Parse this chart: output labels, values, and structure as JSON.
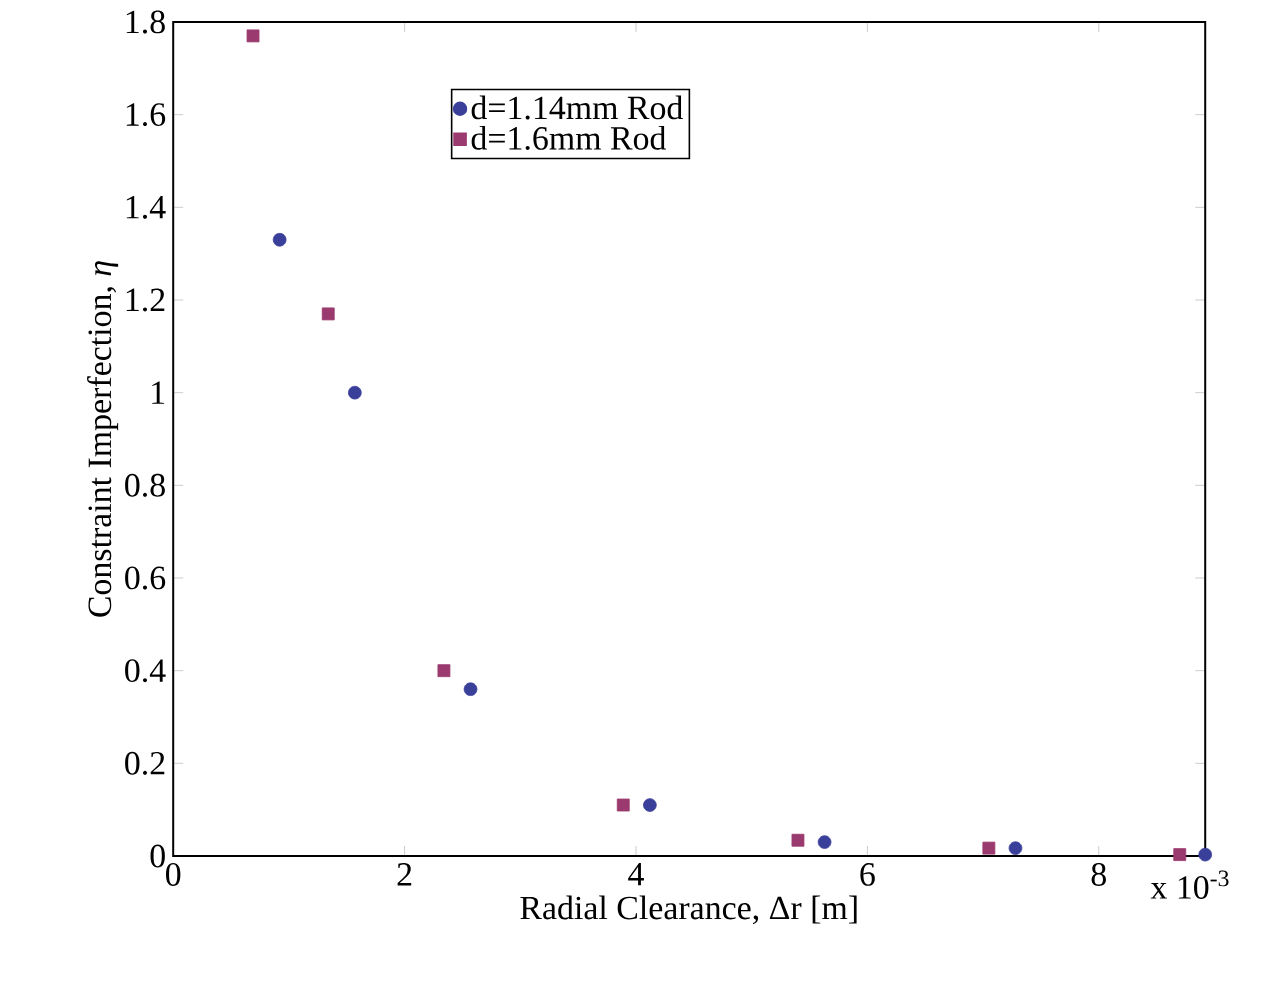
{
  "chart_data": {
    "type": "scatter",
    "xlabel": "Radial Clearance, Δr [m]",
    "ylabel": "Constraint Imperfection, *η*",
    "xlim": [
      0,
      8.92
    ],
    "ylim": [
      0,
      1.8
    ],
    "xticks": [
      0,
      2,
      4,
      6,
      8
    ],
    "yticks": [
      0,
      0.2,
      0.4,
      0.6,
      0.8,
      1,
      1.2,
      1.4,
      1.6,
      1.8
    ],
    "series": [
      {
        "name": "d=1.14mm Rod",
        "color": "#3a3f9a",
        "marker": "circle",
        "x": [
          0.92,
          1.57,
          2.57,
          4.12,
          5.63,
          7.28,
          8.92
        ],
        "values": [
          1.33,
          1.0,
          0.36,
          0.11,
          0.03,
          0.017,
          0.003
        ]
      },
      {
        "name": "d=1.6mm Rod",
        "color": "#9b3a6e",
        "marker": "square",
        "x": [
          0.69,
          1.34,
          2.34,
          3.89,
          5.4,
          7.05,
          8.7
        ],
        "values": [
          1.77,
          1.17,
          0.4,
          0.11,
          0.034,
          0.017,
          0.003
        ]
      }
    ],
    "legend": "top",
    "grid": false,
    "annotations": [
      "x 10$^{-3}$"
    ]
  }
}
